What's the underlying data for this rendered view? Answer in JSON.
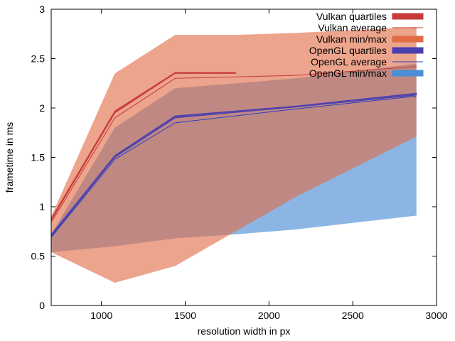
{
  "chart_data": {
    "type": "area",
    "xlabel": "resolution width in px",
    "ylabel": "frametime in ms",
    "xlim": [
      700,
      3000
    ],
    "ylim": [
      0,
      3
    ],
    "xticks": [
      1000,
      1500,
      2000,
      2500,
      3000
    ],
    "yticks": [
      0,
      0.5,
      1,
      1.5,
      2,
      2.5,
      3
    ],
    "legend_position": "top-right",
    "legend": [
      {
        "label": "Vulkan quartiles",
        "color": "#c73a3a",
        "kind": "box"
      },
      {
        "label": "Vulkan average",
        "color": "#c73a3a",
        "kind": "line"
      },
      {
        "label": "Vulkan min/max",
        "color": "#e06c45",
        "kind": "box"
      },
      {
        "label": "OpenGL quartiles",
        "color": "#4b3fb0",
        "kind": "box"
      },
      {
        "label": "OpenGL average",
        "color": "#2a3fbf",
        "kind": "line"
      },
      {
        "label": "OpenGL min/max",
        "color": "#4d8fd6",
        "kind": "box"
      }
    ],
    "series": [
      {
        "name": "OpenGL min/max",
        "color": "#4d8fd6",
        "x": [
          700,
          1080,
          1440,
          1800,
          2160,
          2880
        ],
        "low": [
          0.54,
          0.6,
          0.68,
          0.72,
          0.77,
          0.91
        ],
        "high": [
          0.72,
          1.8,
          2.2,
          2.25,
          2.3,
          2.45
        ]
      },
      {
        "name": "Vulkan min/max",
        "color": "#e06c45",
        "x": [
          700,
          1080,
          1440,
          1800,
          2160,
          2880
        ],
        "low": [
          0.54,
          0.23,
          0.4,
          0.75,
          1.1,
          1.71
        ],
        "high": [
          0.9,
          2.35,
          2.74,
          2.74,
          2.76,
          2.82
        ]
      },
      {
        "name": "Vulkan quartiles",
        "color": "#c73a3a",
        "x": [
          700,
          1080,
          1440,
          1800
        ],
        "low": [
          0.86,
          1.95,
          2.35,
          2.35
        ],
        "high": [
          0.88,
          1.97,
          2.36,
          2.36
        ]
      },
      {
        "name": "Vulkan average",
        "color": "#c73a3a",
        "x": [
          700,
          1080,
          1440,
          2160,
          2880
        ],
        "y": [
          0.84,
          1.9,
          2.3,
          2.33,
          2.42
        ]
      },
      {
        "name": "OpenGL quartiles",
        "color": "#4b3fb0",
        "x": [
          700,
          1080,
          1440,
          2160,
          2880
        ],
        "low": [
          0.7,
          1.5,
          1.9,
          2.01,
          2.13
        ],
        "high": [
          0.72,
          1.52,
          1.92,
          2.02,
          2.15
        ]
      },
      {
        "name": "OpenGL average",
        "color": "#2a3fbf",
        "x": [
          700,
          1080,
          1440,
          2160,
          2880
        ],
        "y": [
          0.69,
          1.48,
          1.85,
          1.99,
          2.12
        ]
      }
    ]
  }
}
